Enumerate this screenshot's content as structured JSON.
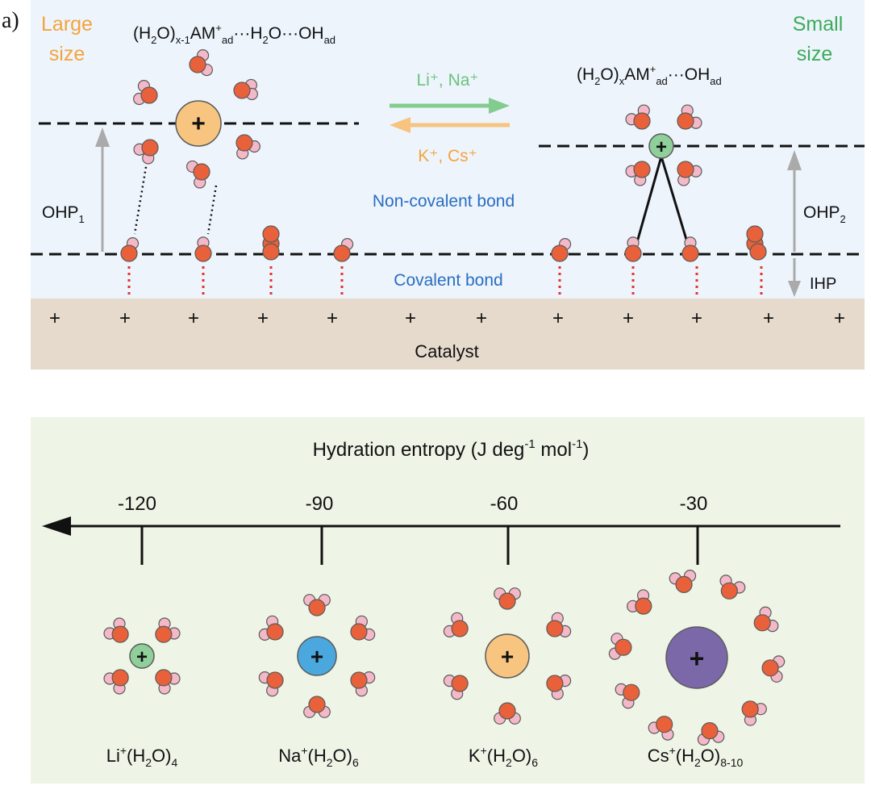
{
  "panel_label": "a)",
  "top": {
    "large_size_label": [
      "Large",
      "size"
    ],
    "small_size_label": [
      "Small",
      "size"
    ],
    "formula_left": {
      "p1": "(H",
      "s1": "2",
      "p2": "O)",
      "s2": "x-1",
      "p3": "AM",
      "sup": "+",
      "s3": "ad",
      "p4": "···H",
      "s4": "2",
      "p5": "O···OH",
      "s5": "ad"
    },
    "formula_right": {
      "p1": "(H",
      "s1": "2",
      "p2": "O)",
      "s2": "x",
      "p3": "AM",
      "sup": "+",
      "s3": "ad",
      "p4": "···OH",
      "s4": "ad"
    },
    "arrow_top_label": "Li⁺, Na⁺",
    "arrow_bottom_label": "K⁺, Cs⁺",
    "ohp1": {
      "main": "OHP",
      "sub": "1"
    },
    "ohp2": {
      "main": "OHP",
      "sub": "2"
    },
    "ihp": "IHP",
    "non_covalent_bond": "Non-covalent bond",
    "covalent_bond": "Covalent bond",
    "catalyst": "Catalyst",
    "ion_symbol": "+",
    "colors": {
      "top_bg": "#edf4fc",
      "catalyst_bg": "#e6dacd",
      "large": "#f5a43a",
      "small": "#3cab5a",
      "blue_text": "#2a6ec2",
      "li_arrow": "#82cc8e",
      "k_arrow": "#f6c47f"
    }
  },
  "bottom": {
    "title": {
      "p1": "Hydration entropy (J deg",
      "sup1": "-1",
      "p2": " mol",
      "sup2": "-1",
      "p3": ")"
    },
    "ticks": [
      "-120",
      "-90",
      "-60",
      "-30"
    ],
    "clusters": [
      {
        "ion": "Li",
        "sup": "+",
        "p1": "(H",
        "s1": "2",
        "p2": "O)",
        "s2": "4",
        "color": "#8fcf9a"
      },
      {
        "ion": "Na",
        "sup": "+",
        "p1": "(H",
        "s1": "2",
        "p2": "O)",
        "s2": "6",
        "color": "#4aa8de"
      },
      {
        "ion": "K",
        "sup": "+",
        "p1": "(H",
        "s1": "2",
        "p2": "O)",
        "s2": "6",
        "color": "#f7c57f"
      },
      {
        "ion": "Cs",
        "sup": "+",
        "p1": "(H",
        "s1": "2",
        "p2": "O)",
        "s2": "8-10",
        "color": "#7b68a8"
      }
    ],
    "colors": {
      "bg": "#eef4e6"
    }
  },
  "molecule_colors": {
    "oxygen": "#e8613a",
    "hydrogen": "#f4b9c9",
    "outline": "#5a5a5a"
  }
}
